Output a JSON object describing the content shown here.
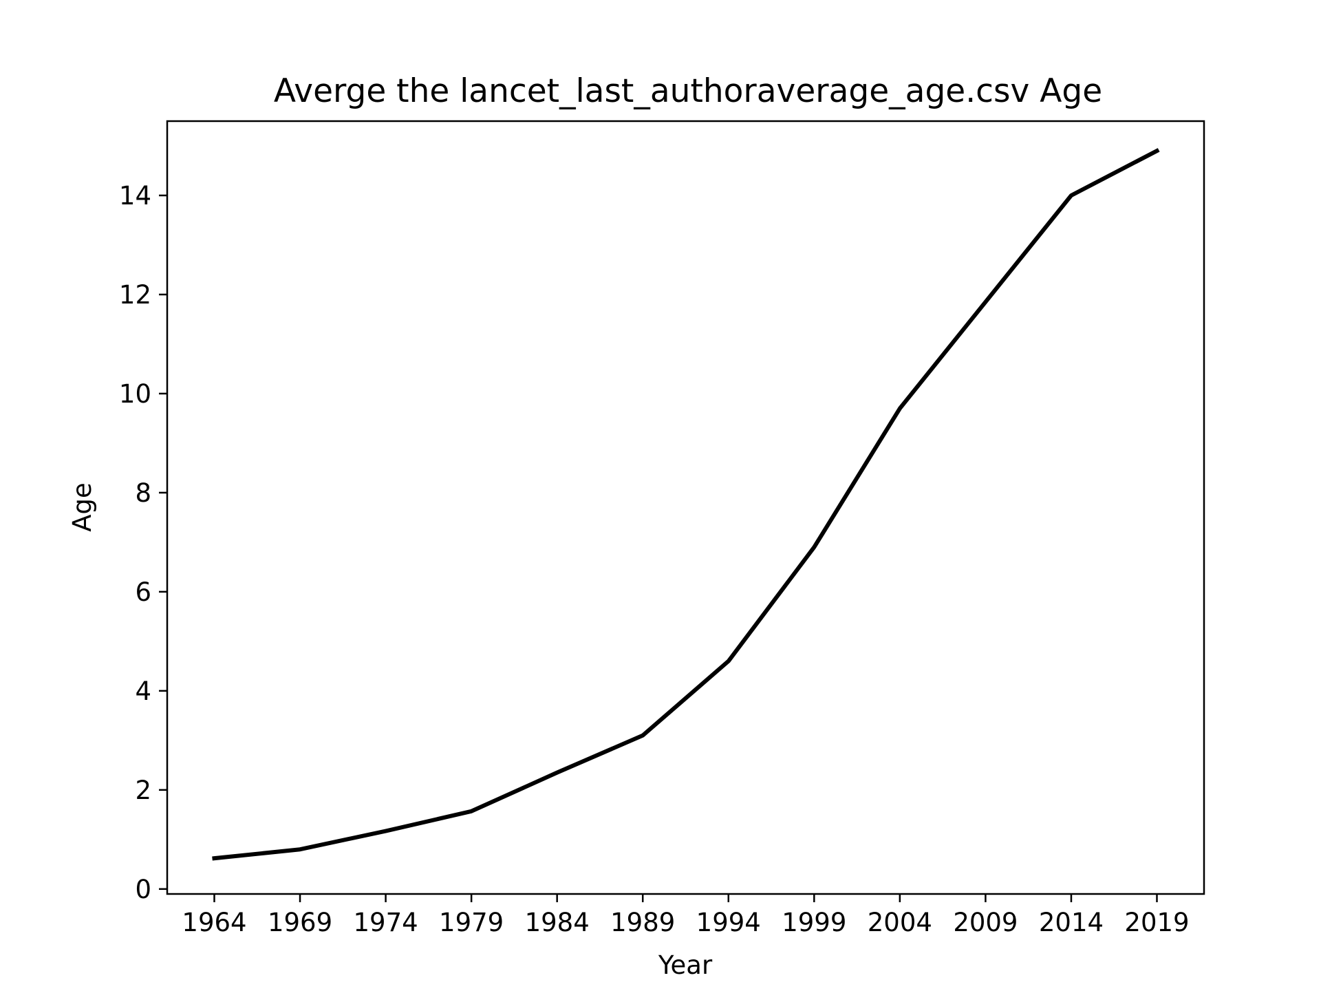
{
  "chart_data": {
    "type": "line",
    "title": "Averge the lancet_last_authoraverage_age.csv Age",
    "xlabel": "Year",
    "ylabel": "Age",
    "x": [
      1964,
      1969,
      1974,
      1979,
      1984,
      1989,
      1994,
      1999,
      2004,
      2009,
      2014,
      2019
    ],
    "xticks": [
      "1964",
      "1969",
      "1974",
      "1979",
      "1984",
      "1989",
      "1994",
      "1999",
      "2004",
      "2009",
      "2014",
      "2019"
    ],
    "yticks": [
      "0",
      "2",
      "4",
      "6",
      "8",
      "10",
      "12",
      "14"
    ],
    "ytick_values": [
      0,
      2,
      4,
      6,
      8,
      10,
      12,
      14
    ],
    "xlim": [
      1961.25,
      2021.75
    ],
    "ylim": [
      -0.1,
      15.5
    ],
    "grid": false,
    "series": [
      {
        "values": [
          0.62,
          0.8,
          1.17,
          1.57,
          2.35,
          3.1,
          4.6,
          6.9,
          9.7,
          11.85,
          14.0,
          14.9
        ],
        "color": "#000000"
      }
    ]
  }
}
